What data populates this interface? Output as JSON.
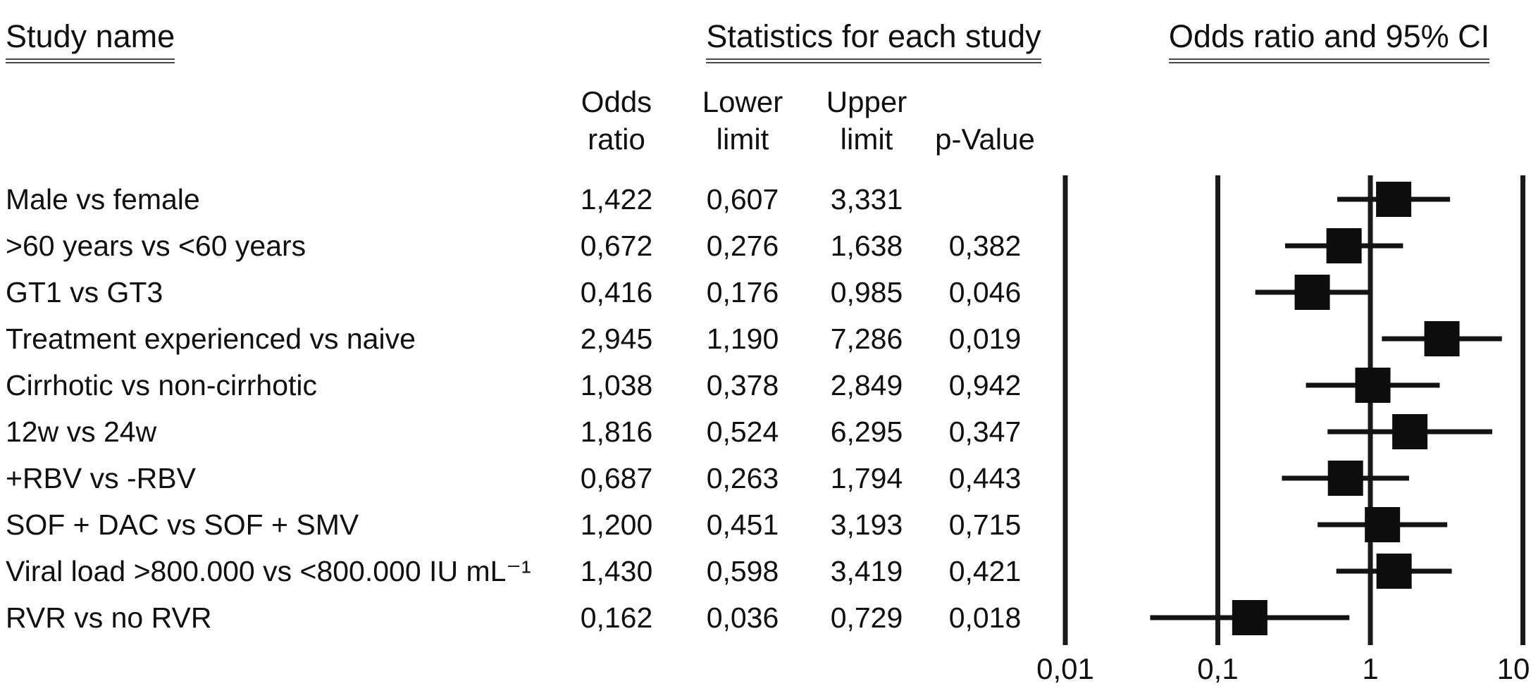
{
  "headers": {
    "study_name": "Study name",
    "statistics": "Statistics for each study",
    "odds_ci": "Odds ratio and 95% CI"
  },
  "columns": {
    "odds_ratio": [
      "Odds",
      "ratio"
    ],
    "lower_limit": [
      "Lower",
      "limit"
    ],
    "upper_limit": [
      "Upper",
      "limit"
    ],
    "p_value": "p-Value"
  },
  "chart_data": {
    "type": "forest",
    "x_scale": "log10",
    "x_range": [
      0.01,
      10
    ],
    "x_axis_ticks": [
      {
        "label": "0,01",
        "value": 0.01
      },
      {
        "label": "0,1",
        "value": 0.1
      },
      {
        "label": "1",
        "value": 1
      },
      {
        "label": "10",
        "value": 10
      }
    ],
    "rows": [
      {
        "label": "Male vs female",
        "or": 1.422,
        "lower": 0.607,
        "upper": 3.331,
        "p": null,
        "or_text": "1,422",
        "lower_text": "0,607",
        "upper_text": "3,331",
        "p_text": ""
      },
      {
        "label": ">60 years vs <60 years",
        "or": 0.672,
        "lower": 0.276,
        "upper": 1.638,
        "p": 0.382,
        "or_text": "0,672",
        "lower_text": "0,276",
        "upper_text": "1,638",
        "p_text": "0,382"
      },
      {
        "label": "GT1 vs GT3",
        "or": 0.416,
        "lower": 0.176,
        "upper": 0.985,
        "p": 0.046,
        "or_text": "0,416",
        "lower_text": "0,176",
        "upper_text": "0,985",
        "p_text": "0,046"
      },
      {
        "label": "Treatment experienced vs naive",
        "or": 2.945,
        "lower": 1.19,
        "upper": 7.286,
        "p": 0.019,
        "or_text": "2,945",
        "lower_text": "1,190",
        "upper_text": "7,286",
        "p_text": "0,019"
      },
      {
        "label": "Cirrhotic vs non-cirrhotic",
        "or": 1.038,
        "lower": 0.378,
        "upper": 2.849,
        "p": 0.942,
        "or_text": "1,038",
        "lower_text": "0,378",
        "upper_text": "2,849",
        "p_text": "0,942"
      },
      {
        "label": "12w vs 24w",
        "or": 1.816,
        "lower": 0.524,
        "upper": 6.295,
        "p": 0.347,
        "or_text": "1,816",
        "lower_text": "0,524",
        "upper_text": "6,295",
        "p_text": "0,347"
      },
      {
        "label": "+RBV vs -RBV",
        "or": 0.687,
        "lower": 0.263,
        "upper": 1.794,
        "p": 0.443,
        "or_text": "0,687",
        "lower_text": "0,263",
        "upper_text": "1,794",
        "p_text": "0,443"
      },
      {
        "label": "SOF + DAC vs SOF + SMV",
        "or": 1.2,
        "lower": 0.451,
        "upper": 3.193,
        "p": 0.715,
        "or_text": "1,200",
        "lower_text": "0,451",
        "upper_text": "3,193",
        "p_text": "0,715"
      },
      {
        "label": "Viral load >800.000 vs <800.000 IU mL⁻¹",
        "or": 1.43,
        "lower": 0.598,
        "upper": 3.419,
        "p": 0.421,
        "or_text": "1,430",
        "lower_text": "0,598",
        "upper_text": "3,419",
        "p_text": "0,421"
      },
      {
        "label": "RVR vs no RVR",
        "or": 0.162,
        "lower": 0.036,
        "upper": 0.729,
        "p": 0.018,
        "or_text": "0,162",
        "lower_text": "0,036",
        "upper_text": "0,729",
        "p_text": "0,018"
      }
    ]
  }
}
